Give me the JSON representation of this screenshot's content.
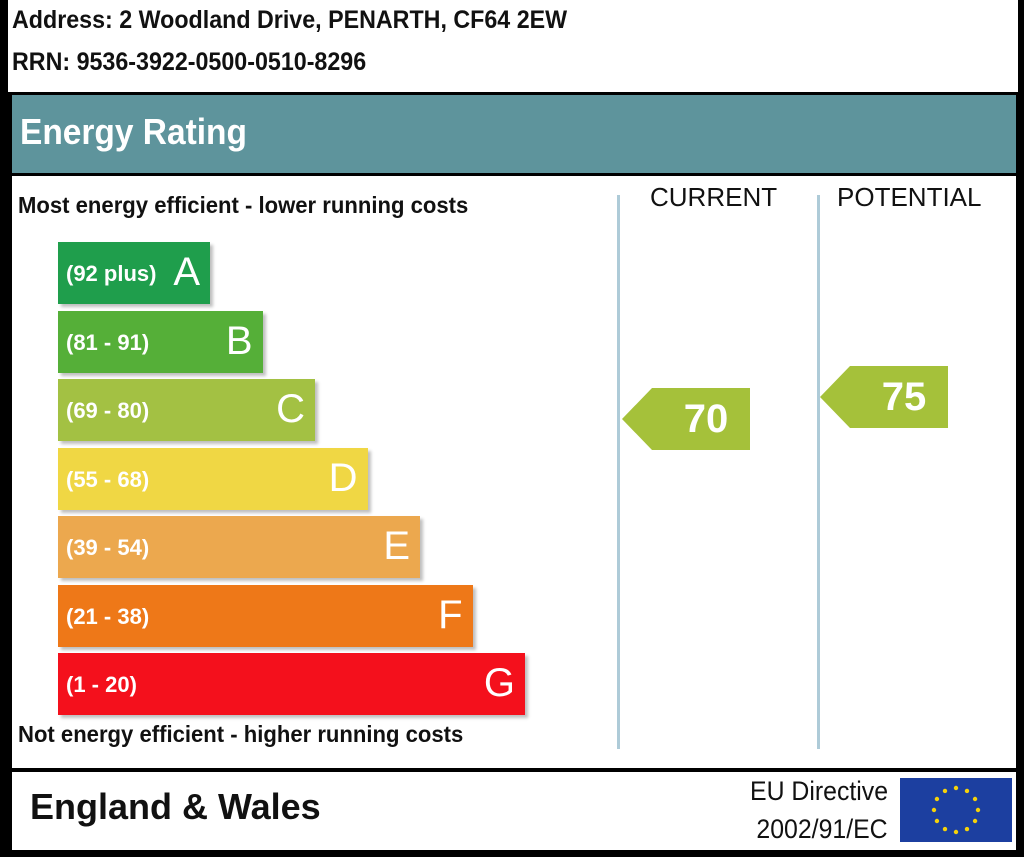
{
  "header": {
    "address": "Address: 2 Woodland Drive, PENARTH, CF64 2EW",
    "rrn": "RRN: 9536-3922-0500-0510-8296"
  },
  "title": "Energy Rating",
  "top_caption": "Most energy efficient - lower running costs",
  "bottom_caption": "Not energy efficient - higher running costs",
  "columns": {
    "current": "CURRENT",
    "potential": "POTENTIAL"
  },
  "footer": {
    "country": "England & Wales",
    "directive_line1": "EU Directive",
    "directive_line2": "2002/91/EC",
    "flag_icon": "eu-flag-icon"
  },
  "chart_data": {
    "type": "bar",
    "title": "Energy Rating",
    "bands": [
      {
        "letter": "A",
        "range": "(92 plus)",
        "color": "#1f9e4c"
      },
      {
        "letter": "B",
        "range": "(81 - 91)",
        "color": "#55af38"
      },
      {
        "letter": "C",
        "range": "(69 - 80)",
        "color": "#a3c143"
      },
      {
        "letter": "D",
        "range": "(55 - 68)",
        "color": "#f0d744"
      },
      {
        "letter": "E",
        "range": "(39 - 54)",
        "color": "#eca84e"
      },
      {
        "letter": "F",
        "range": "(21 - 38)",
        "color": "#ee7818"
      },
      {
        "letter": "G",
        "range": "(1 - 20)",
        "color": "#f4101c"
      }
    ],
    "current": {
      "value": "70",
      "band": "C",
      "color": "#a5c13a"
    },
    "potential": {
      "value": "75",
      "band": "C",
      "color": "#a5c13a"
    }
  }
}
